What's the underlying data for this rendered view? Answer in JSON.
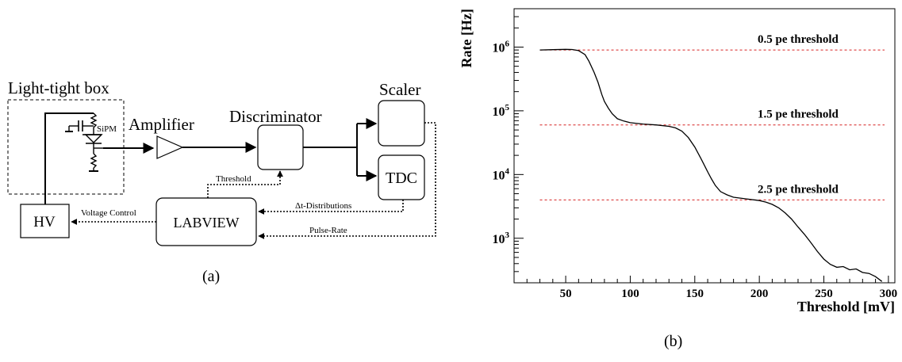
{
  "panel_a": {
    "caption": "(a)",
    "box_title": "Light-tight box",
    "sipm_label": "SiPM",
    "amplifier": "Amplifier",
    "discriminator": "Discriminator",
    "scaler": "Scaler",
    "tdc": "TDC",
    "hv": "HV",
    "labview": "LABVIEW",
    "threshold_label": "Threshold",
    "voltage_control_label": "Voltage Control",
    "dt_label": "Δt-Distributions",
    "pulse_rate_label": "Pulse-Rate"
  },
  "panel_b": {
    "caption": "(b)",
    "thresholds": [
      {
        "label": "0.5 pe threshold",
        "rate": 900000
      },
      {
        "label": "1.5 pe threshold",
        "rate": 60000
      },
      {
        "label": "2.5 pe threshold",
        "rate": 4000
      }
    ]
  },
  "chart_data": {
    "type": "line",
    "title": "",
    "xlabel": "Threshold [mV]",
    "ylabel": "Rate [Hz]",
    "xlim": [
      10,
      305
    ],
    "ylim": [
      200,
      4000000
    ],
    "y_scale": "log",
    "x_ticks": [
      50,
      100,
      150,
      200,
      250,
      300
    ],
    "y_ticks": [
      {
        "value": 1000,
        "label": "10^3"
      },
      {
        "value": 10000,
        "label": "10^4"
      },
      {
        "value": 100000,
        "label": "10^5"
      },
      {
        "value": 1000000,
        "label": "10^6"
      }
    ],
    "threshold_line_color": "#d62020",
    "series": [
      {
        "x": [
          30,
          40,
          50,
          55,
          60,
          65,
          68,
          72,
          75,
          78,
          80,
          83,
          86,
          90,
          95,
          100,
          110,
          120,
          130,
          135,
          140,
          145,
          150,
          155,
          160,
          163,
          166,
          170,
          175,
          180,
          190,
          200,
          205,
          210,
          215,
          220,
          225,
          230,
          235,
          240,
          245,
          250,
          255,
          260,
          265,
          270,
          275,
          280,
          285,
          290,
          295
        ],
        "y": [
          900000,
          910000,
          920000,
          915000,
          880000,
          760000,
          600000,
          400000,
          280000,
          180000,
          140000,
          110000,
          90000,
          75000,
          69000,
          65000,
          62000,
          60000,
          57000,
          54000,
          48000,
          38000,
          27000,
          17500,
          11000,
          8500,
          6700,
          5400,
          4800,
          4400,
          4150,
          3900,
          3700,
          3400,
          3000,
          2500,
          2000,
          1500,
          1150,
          850,
          620,
          470,
          390,
          350,
          360,
          320,
          330,
          290,
          280,
          250,
          210
        ]
      }
    ]
  }
}
